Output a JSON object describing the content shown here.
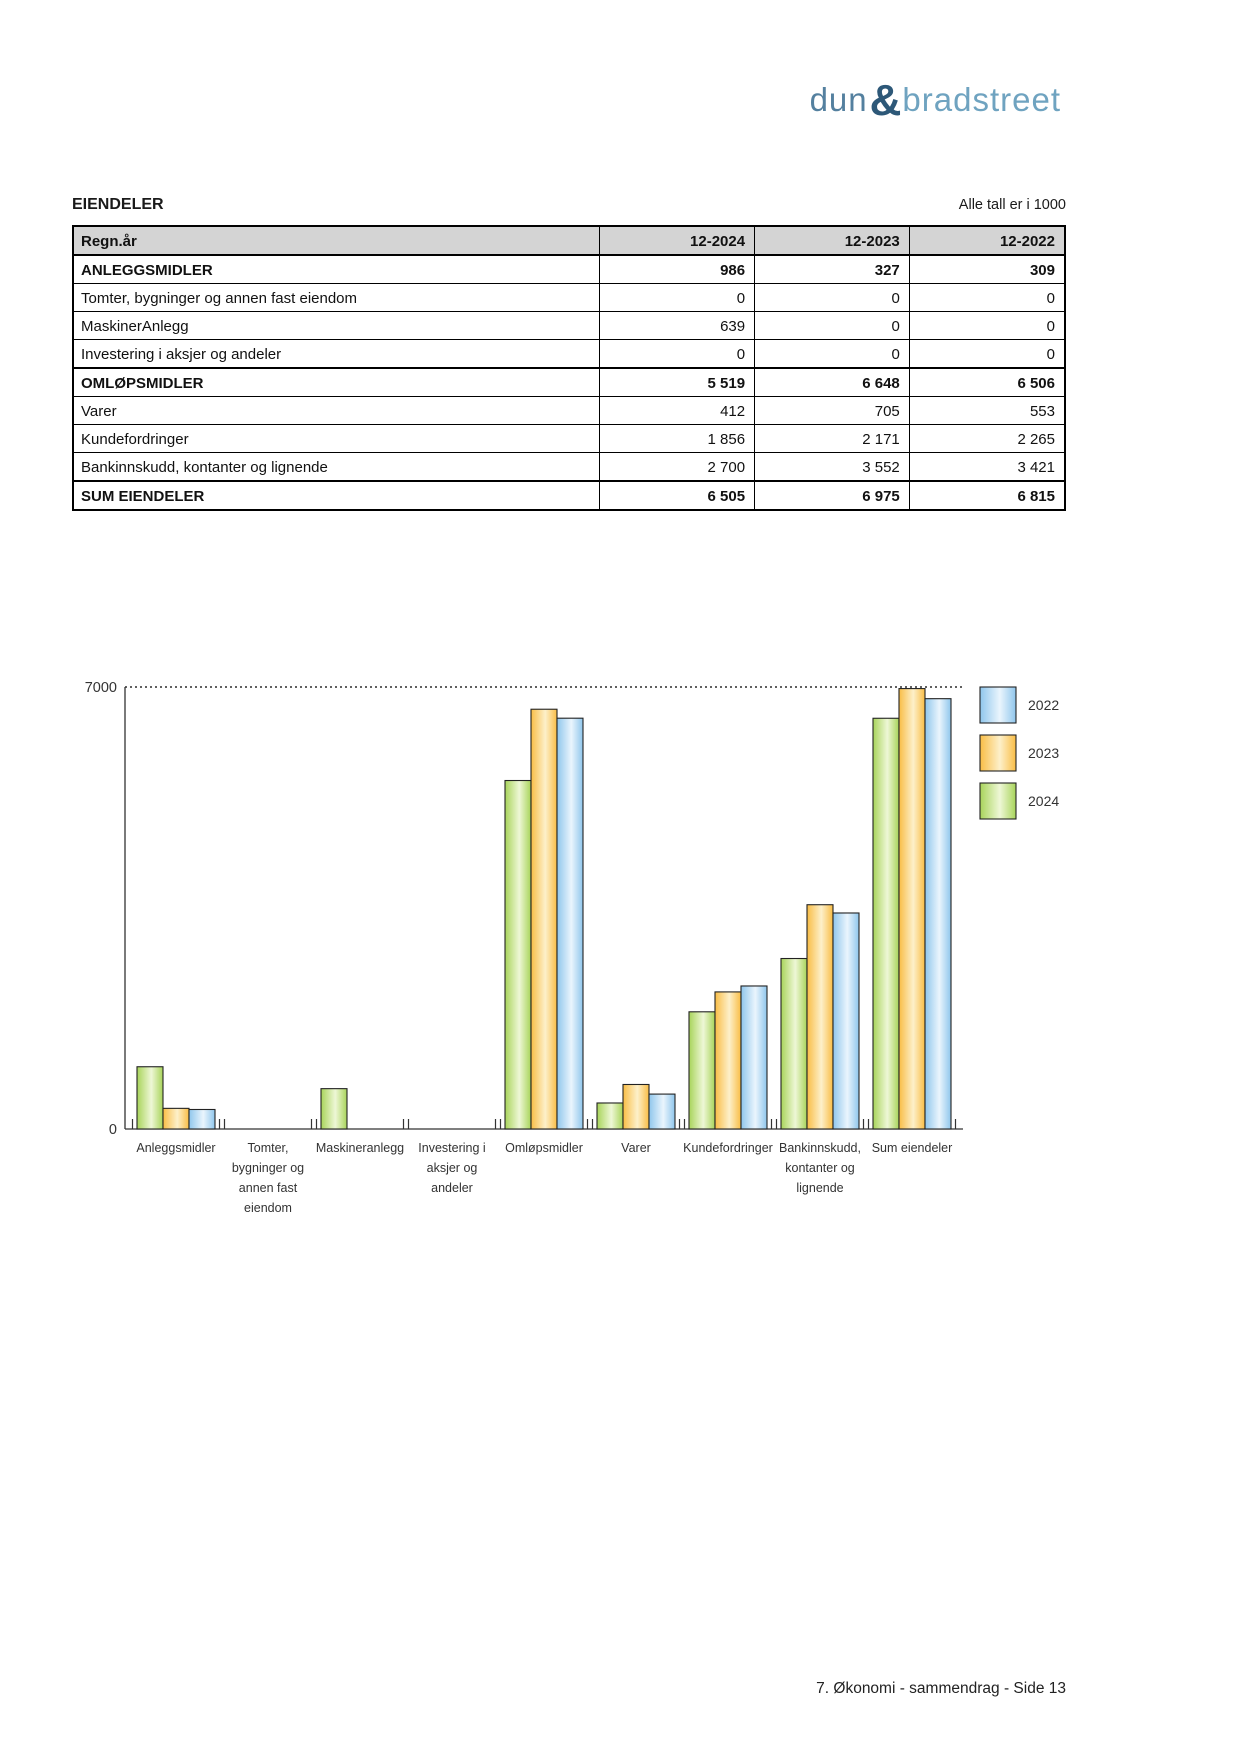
{
  "logo": {
    "part1": "dun",
    "amp": "&",
    "part2": "bradstreet"
  },
  "header": {
    "title": "EIENDELER",
    "note": "Alle tall er i 1000"
  },
  "table": {
    "header": {
      "label": "Regn.år",
      "cols": [
        "12-2024",
        "12-2023",
        "12-2022"
      ]
    },
    "rows": [
      {
        "label": "ANLEGGSMIDLER",
        "values": [
          "986",
          "327",
          "309"
        ],
        "bold": true
      },
      {
        "label": "Tomter, bygninger og annen fast eiendom",
        "values": [
          "0",
          "0",
          "0"
        ],
        "bold": false
      },
      {
        "label": "MaskinerAnlegg",
        "values": [
          "639",
          "0",
          "0"
        ],
        "bold": false
      },
      {
        "label": "Investering i aksjer og andeler",
        "values": [
          "0",
          "0",
          "0"
        ],
        "bold": false
      },
      {
        "label": "OMLØPSMIDLER",
        "values": [
          "5 519",
          "6 648",
          "6 506"
        ],
        "bold": true
      },
      {
        "label": "Varer",
        "values": [
          "412",
          "705",
          "553"
        ],
        "bold": false
      },
      {
        "label": "Kundefordringer",
        "values": [
          "1 856",
          "2 171",
          "2 265"
        ],
        "bold": false
      },
      {
        "label": "Bankinnskudd, kontanter og lignende",
        "values": [
          "2 700",
          "3 552",
          "3 421"
        ],
        "bold": false
      },
      {
        "label": "SUM EIENDELER",
        "values": [
          "6 505",
          "6 975",
          "6 815"
        ],
        "bold": true
      }
    ]
  },
  "chart_data": {
    "type": "bar",
    "title": "",
    "xlabel": "",
    "ylabel": "",
    "ylim": [
      0,
      7000
    ],
    "ytick_labels": [
      "0",
      "7000"
    ],
    "grid": "single dotted horizontal line at 7000",
    "legend_position": "top-right",
    "legend_order": [
      "2022",
      "2023",
      "2024"
    ],
    "bar_order": [
      "2024",
      "2023",
      "2022"
    ],
    "categories": [
      "Anleggsmidler",
      "Tomter, bygninger og annen fast eiendom",
      "Maskineranlegg",
      "Investering i aksjer og andeler",
      "Omløpsmidler",
      "Varer",
      "Kundefordringer",
      "Bankinnskudd, kontanter og lignende",
      "Sum eiendeler"
    ],
    "category_label_lines": [
      [
        "Anleggsmidler"
      ],
      [
        "Tomter,",
        "bygninger og",
        "annen fast",
        "eiendom"
      ],
      [
        "Maskineranlegg"
      ],
      [
        "Investering i",
        "aksjer og",
        "andeler"
      ],
      [
        "Omløpsmidler"
      ],
      [
        "Varer"
      ],
      [
        "Kundefordringer"
      ],
      [
        "Bankinnskudd,",
        "kontanter og",
        "lignende"
      ],
      [
        "Sum eiendeler"
      ]
    ],
    "series": [
      {
        "name": "2022",
        "color": "#8fc6ec",
        "color_light": "#eaf5fd",
        "values": [
          309,
          0,
          0,
          0,
          6506,
          553,
          2265,
          3421,
          6815
        ]
      },
      {
        "name": "2023",
        "color": "#f9bd45",
        "color_light": "#fdf0ca",
        "values": [
          327,
          0,
          0,
          0,
          6648,
          705,
          2171,
          3552,
          6975
        ]
      },
      {
        "name": "2024",
        "color": "#a8d45a",
        "color_light": "#eef7d6",
        "values": [
          986,
          0,
          639,
          0,
          5519,
          412,
          1856,
          2700,
          6505
        ]
      }
    ]
  },
  "footer": {
    "text": "7. Økonomi - sammendrag - Side 13"
  }
}
